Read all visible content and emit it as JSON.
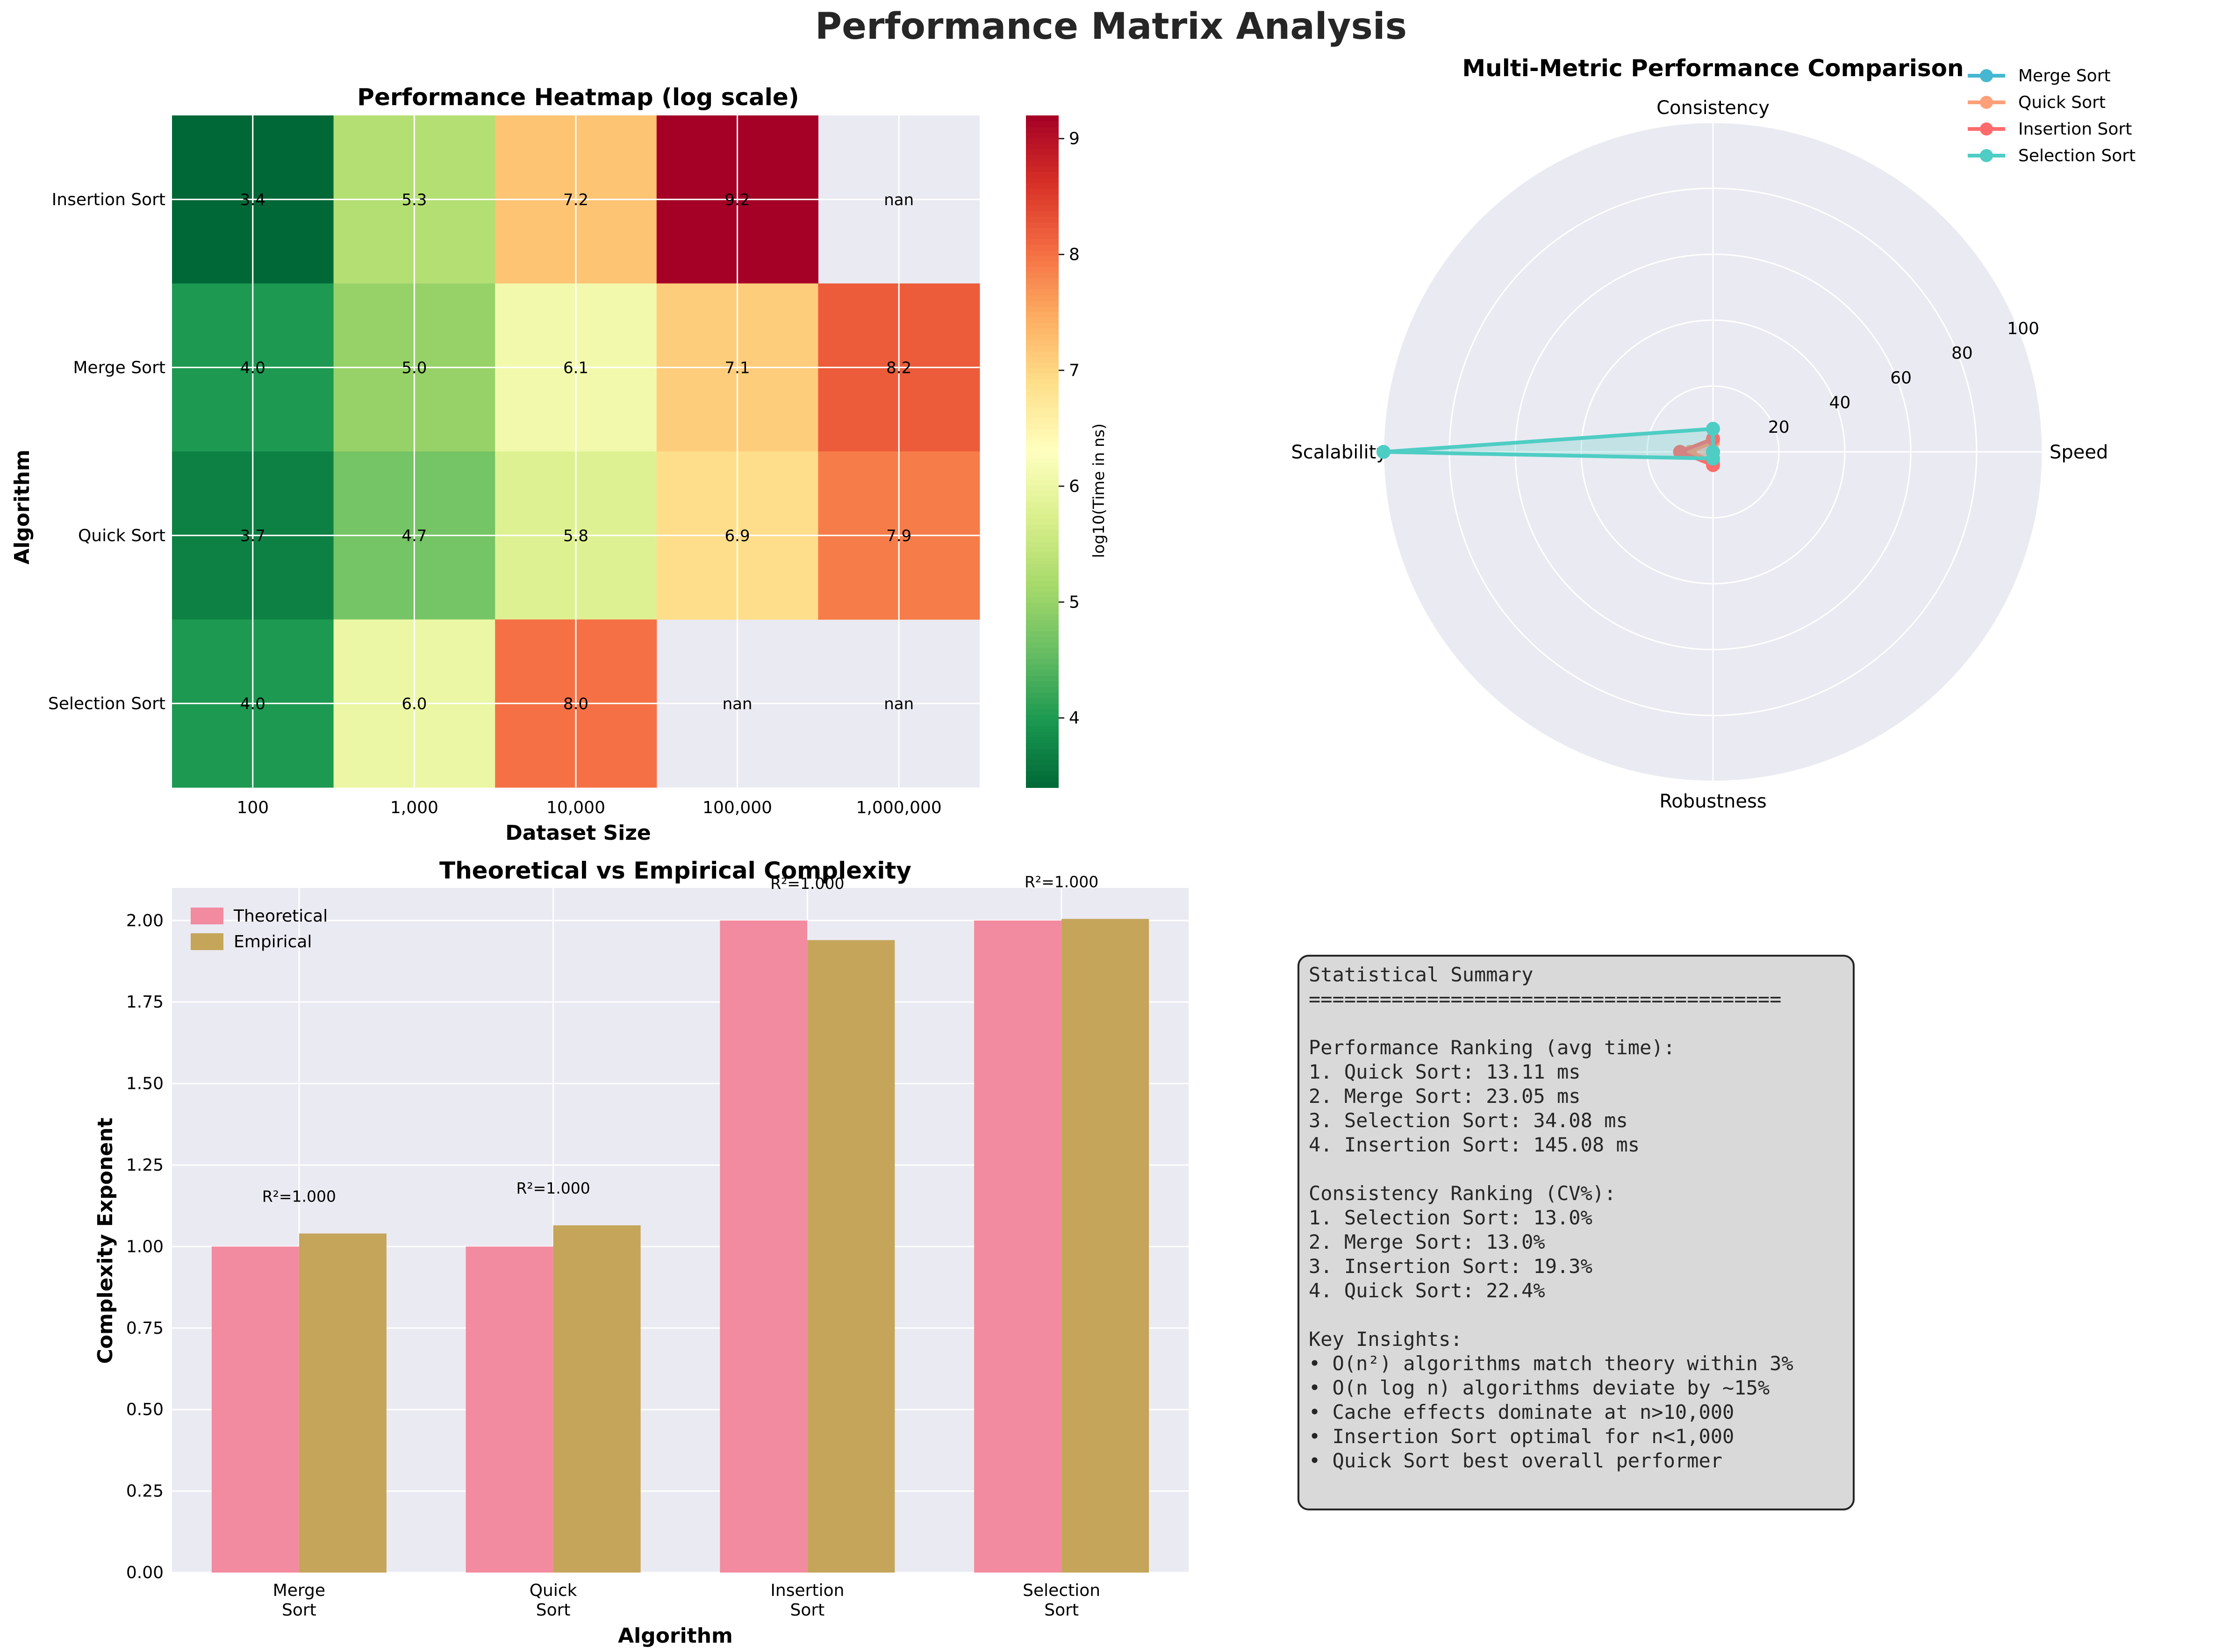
{
  "figure": {
    "title": "Performance Matrix Analysis"
  },
  "chart_data": [
    {
      "type": "heatmap",
      "title": "Performance Heatmap (log scale)",
      "xlabel": "Dataset Size",
      "ylabel": "Algorithm",
      "x": [
        "100",
        "1,000",
        "10,000",
        "100,000",
        "1,000,000"
      ],
      "y": [
        "Insertion Sort",
        "Merge Sort",
        "Quick Sort",
        "Selection Sort"
      ],
      "values": [
        [
          3.4,
          5.3,
          7.2,
          9.2,
          null
        ],
        [
          4.0,
          5.0,
          6.1,
          7.1,
          8.2
        ],
        [
          3.7,
          4.7,
          5.8,
          6.9,
          7.9
        ],
        [
          4.0,
          6.0,
          8.0,
          null,
          null
        ]
      ],
      "missing_label": "nan",
      "colorbar": {
        "label": "log10(Time in ns)",
        "range": [
          3.4,
          9.2
        ],
        "ticks": [
          4,
          5,
          6,
          7,
          8,
          9
        ],
        "colormap": "RdYlGn_r"
      },
      "grid": true
    },
    {
      "type": "radar",
      "title": "Multi-Metric Performance Comparison",
      "axes": [
        "Speed",
        "Consistency",
        "Scalability",
        "Robustness"
      ],
      "rlim": [
        0,
        100
      ],
      "r_ticks": [
        20,
        40,
        60,
        80,
        100
      ],
      "legend_position": "top-right",
      "series": [
        {
          "name": "Merge Sort",
          "values": [
            0,
            0,
            0,
            0
          ],
          "color": "#45b7d1"
        },
        {
          "name": "Quick Sort",
          "values": [
            0,
            3,
            7,
            3
          ],
          "color": "#ffa07a"
        },
        {
          "name": "Insertion Sort",
          "values": [
            0,
            4,
            10,
            4
          ],
          "color": "#ff6b6b"
        },
        {
          "name": "Selection Sort",
          "values": [
            0,
            7,
            100,
            2
          ],
          "color": "#4ecdc4"
        }
      ]
    },
    {
      "type": "bar",
      "title": "Theoretical vs Empirical Complexity",
      "xlabel": "Algorithm",
      "ylabel": "Complexity Exponent",
      "categories": [
        [
          "Merge",
          "Sort"
        ],
        [
          "Quick",
          "Sort"
        ],
        [
          "Insertion",
          "Sort"
        ],
        [
          "Selection",
          "Sort"
        ]
      ],
      "series": [
        {
          "name": "Theoretical",
          "values": [
            1.0,
            1.0,
            2.0,
            2.0
          ],
          "color": "#f28b9f"
        },
        {
          "name": "Empirical",
          "values": [
            1.04,
            1.065,
            1.94,
            2.005
          ],
          "color": "#c4a55a"
        }
      ],
      "annotations": [
        "R²=1.000",
        "R²=1.000",
        "R²=1.000",
        "R²=1.000"
      ],
      "ylim": [
        0,
        2.1
      ],
      "y_ticks": [
        "0.00",
        "0.25",
        "0.50",
        "0.75",
        "1.00",
        "1.25",
        "1.50",
        "1.75",
        "2.00"
      ],
      "legend_position": "top-left",
      "grid": true
    }
  ],
  "summary": {
    "lines": [
      "Statistical Summary",
      "========================================",
      "",
      "Performance Ranking (avg time):",
      "1. Quick Sort: 13.11 ms",
      "2. Merge Sort: 23.05 ms",
      "3. Selection Sort: 34.08 ms",
      "4. Insertion Sort: 145.08 ms",
      "",
      "Consistency Ranking (CV%):",
      "1. Selection Sort: 13.0%",
      "2. Merge Sort: 13.0%",
      "3. Insertion Sort: 19.3%",
      "4. Quick Sort: 22.4%",
      "",
      "Key Insights:",
      "• O(n²) algorithms match theory within 3%",
      "• O(n log n) algorithms deviate by ~15%",
      "• Cache effects dominate at n>10,000",
      "• Insertion Sort optimal for n<1,000",
      "• Quick Sort best overall performer"
    ]
  }
}
